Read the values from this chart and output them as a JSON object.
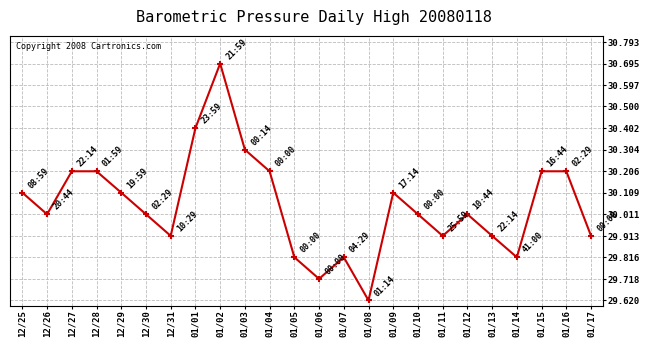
{
  "title": "Barometric Pressure Daily High 20080118",
  "copyright": "Copyright 2008 Cartronics.com",
  "x_labels": [
    "12/25",
    "12/26",
    "12/27",
    "12/28",
    "12/29",
    "12/30",
    "12/31",
    "01/01",
    "01/02",
    "01/03",
    "01/04",
    "01/05",
    "01/06",
    "01/07",
    "01/08",
    "01/09",
    "01/10",
    "01/11",
    "01/12",
    "01/13",
    "01/14",
    "01/15",
    "01/16",
    "01/17"
  ],
  "x_indices": [
    0,
    1,
    2,
    3,
    4,
    5,
    6,
    7,
    8,
    9,
    10,
    11,
    12,
    13,
    14,
    15,
    16,
    17,
    18,
    19,
    20,
    21,
    22,
    23
  ],
  "y_values": [
    30.109,
    30.011,
    30.206,
    30.206,
    30.109,
    30.011,
    29.913,
    30.402,
    30.695,
    30.304,
    30.206,
    29.816,
    29.718,
    29.816,
    29.62,
    30.109,
    30.011,
    29.913,
    30.011,
    29.913,
    29.816,
    30.206,
    30.206,
    29.913
  ],
  "point_labels": [
    "08:59",
    "20:44",
    "22:14",
    "01:59",
    "19:59",
    "02:29",
    "10:29",
    "23:59",
    "21:59",
    "00:14",
    "00:00",
    "00:00",
    "00:00",
    "04:29",
    "01:14",
    "17:14",
    "00:00",
    "25:59",
    "10:44",
    "22:14",
    "41:00",
    "16:44",
    "02:29",
    "00:00"
  ],
  "y_ticks": [
    29.62,
    29.718,
    29.816,
    29.913,
    30.011,
    30.109,
    30.206,
    30.304,
    30.402,
    30.5,
    30.597,
    30.695,
    30.793
  ],
  "line_color": "#cc0000",
  "marker_color": "#cc0000",
  "bg_color": "#ffffff",
  "grid_color": "#bbbbbb",
  "title_fontsize": 11,
  "label_fontsize": 6,
  "tick_fontsize": 6.5,
  "copyright_fontsize": 6
}
